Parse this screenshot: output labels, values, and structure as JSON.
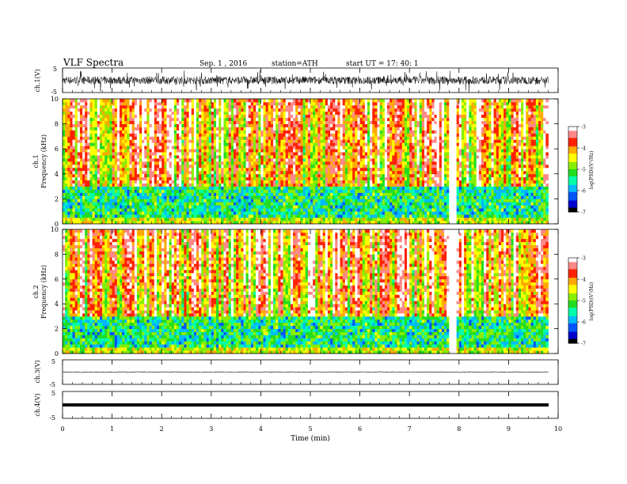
{
  "header": {
    "title": "VLF  Spectra",
    "date": "Sep. 1  , 2016",
    "station": "station=ATH",
    "start": "start  UT  =   17: 40: 1"
  },
  "colors": {
    "scale": [
      "#000000",
      "#0000cc",
      "#0055ff",
      "#00bbff",
      "#00ffaa",
      "#22dd22",
      "#88ee00",
      "#ffff00",
      "#ffaa00",
      "#ff2200",
      "#ff8888",
      "#ffffff"
    ]
  },
  "chart_data": [
    {
      "id": "ch1-waveform",
      "type": "line",
      "ylabel": "ch.1(V)",
      "ylim": [
        -5,
        5
      ],
      "yticks": [
        "5",
        "-5"
      ],
      "xlim": [
        0,
        10
      ],
      "amplitude": {
        "typical": 1.6,
        "burst": 4.5,
        "data_end_min": 9.8
      }
    },
    {
      "id": "ch1-spectrogram",
      "type": "heatmap",
      "ylabel_channel": "ch.1",
      "ylabel": "Frequency  (kHz)",
      "ylim": [
        0,
        10
      ],
      "yticks": [
        "0",
        "2",
        "4",
        "6",
        "8",
        "10"
      ],
      "colorbar": {
        "label": "log(PSD)(V²/Hz)",
        "ticks": [
          "-3",
          "-4",
          "-5",
          "-6",
          "-7"
        ],
        "range": [
          -7,
          -3
        ]
      },
      "bright_column_min": 7.85
    },
    {
      "id": "ch2-spectrogram",
      "type": "heatmap",
      "ylabel_channel": "ch.2",
      "ylabel": "Frequency  (kHz)",
      "ylim": [
        0,
        10
      ],
      "yticks": [
        "0",
        "2",
        "4",
        "6",
        "8",
        "10"
      ],
      "colorbar": {
        "label": "log(PSD)(V²/Hz)",
        "ticks": [
          "-3",
          "-4",
          "-5",
          "-6",
          "-7"
        ],
        "range": [
          -7,
          -3
        ]
      },
      "bright_column_min": 7.85
    },
    {
      "id": "ch3-waveform",
      "type": "line",
      "ylabel": "ch.3(V)",
      "ylim": [
        -5,
        5
      ],
      "yticks": [
        "5",
        "-5"
      ],
      "trace_level": 0,
      "amplitude": {
        "typical": 0.15
      }
    },
    {
      "id": "ch4-waveform",
      "type": "line",
      "ylabel": "ch.4(V)",
      "ylim": [
        -5,
        5
      ],
      "yticks": [
        "5",
        "-5"
      ],
      "trace_level": 0,
      "amplitude": {
        "typical": 0.0
      }
    }
  ],
  "x_axis": {
    "label": "Time  (min)",
    "range": [
      0,
      10
    ],
    "ticks": [
      "0",
      "1",
      "2",
      "3",
      "4",
      "5",
      "6",
      "7",
      "8",
      "9",
      "10"
    ]
  }
}
